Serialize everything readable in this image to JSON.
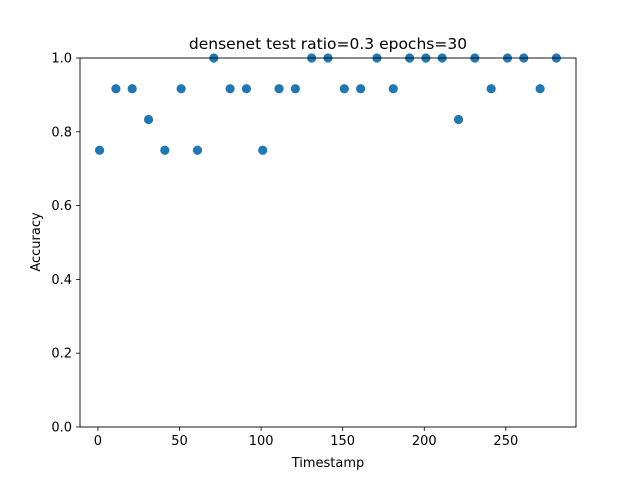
{
  "chart_data": {
    "type": "scatter",
    "title": "densenet test ratio=0.3 epochs=30",
    "xlabel": "Timestamp",
    "ylabel": "Accuracy",
    "xlim": [
      -11,
      293
    ],
    "ylim": [
      0.0,
      1.0
    ],
    "xticks": [
      0,
      50,
      100,
      150,
      200,
      250
    ],
    "yticks": [
      0.0,
      0.2,
      0.4,
      0.6,
      0.8,
      1.0
    ],
    "xtick_labels": [
      "0",
      "50",
      "100",
      "150",
      "200",
      "250"
    ],
    "ytick_labels": [
      "0.0",
      "0.2",
      "0.4",
      "0.6",
      "0.8",
      "1.0"
    ],
    "grid": false,
    "marker_color": "#1f77b4",
    "series": [
      {
        "x": [
          1,
          11,
          21,
          31,
          41,
          51,
          61,
          71,
          81,
          91,
          101,
          111,
          121,
          131,
          141,
          151,
          161,
          171,
          181,
          191,
          201,
          211,
          221,
          231,
          241,
          251,
          261,
          271,
          281
        ],
        "y": [
          0.75,
          0.9167,
          0.9167,
          0.8333,
          0.75,
          0.9167,
          0.75,
          1.0,
          0.9167,
          0.9167,
          0.75,
          0.9167,
          0.9167,
          1.0,
          1.0,
          0.9167,
          0.9167,
          1.0,
          0.9167,
          1.0,
          1.0,
          1.0,
          0.8333,
          1.0,
          0.9167,
          1.0,
          1.0,
          0.9167,
          1.0
        ]
      }
    ]
  }
}
